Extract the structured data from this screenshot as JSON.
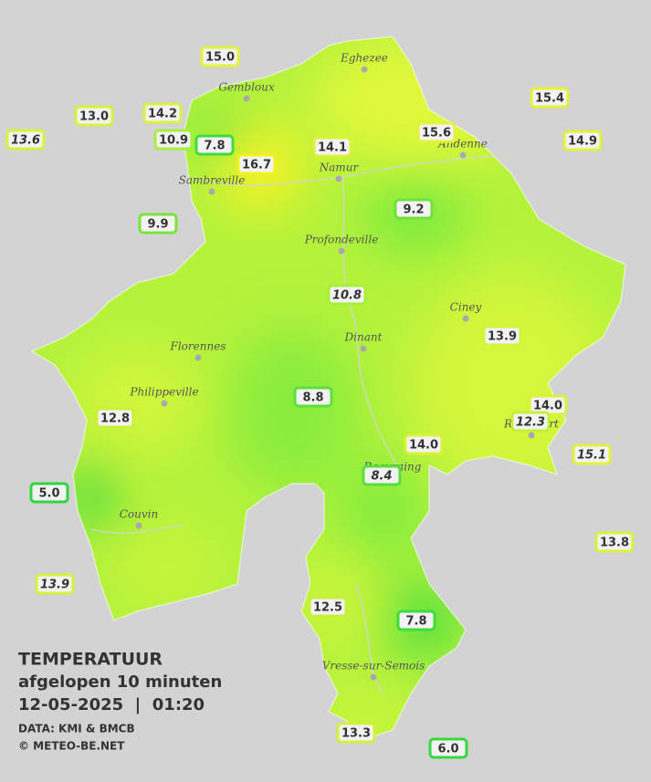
{
  "legend": {
    "title": "TEMPERATUUR",
    "subtitle": "afgelopen 10 minuten",
    "datetime": "12-05-2025  |  01:20",
    "source": "DATA: KMI & BMCB",
    "credit": "© METEO-BE.NET"
  },
  "cities": [
    "Eghezee",
    "Gembloux",
    "Andenne",
    "Namur",
    "Sambreville",
    "Profondeville",
    "Ciney",
    "Florennes",
    "Dinant",
    "Philippeville",
    "Rochefort",
    "Beauraing",
    "Couvin",
    "Vresse-sur-Semois"
  ],
  "stations": [
    {
      "value": "15.0",
      "color": "#e4f23a"
    },
    {
      "value": "13.0",
      "color": "#d8f23a"
    },
    {
      "value": "14.2",
      "color": "#dcf23a"
    },
    {
      "value": "13.6",
      "color": "#d8f23a",
      "italic": true
    },
    {
      "value": "10.9",
      "color": "#a6ef3c"
    },
    {
      "value": "7.8",
      "color": "#3fdc3f"
    },
    {
      "value": "16.7",
      "color": "#f2f222"
    },
    {
      "value": "14.1",
      "color": "#dcf23a"
    },
    {
      "value": "15.6",
      "color": "#e4f23a"
    },
    {
      "value": "15.4",
      "color": "#e4f23a"
    },
    {
      "value": "14.9",
      "color": "#e0f23a"
    },
    {
      "value": "9.9",
      "color": "#78e53c"
    },
    {
      "value": "9.2",
      "color": "#6ee23c"
    },
    {
      "value": "10.8",
      "color": "#a6ef3c",
      "italic": true
    },
    {
      "value": "13.9",
      "color": "#d6f23a"
    },
    {
      "value": "8.8",
      "color": "#5ee03c"
    },
    {
      "value": "14.0",
      "color": "#dcf23a"
    },
    {
      "value": "12.3",
      "color": "#c4f03a",
      "italic": true
    },
    {
      "value": "12.8",
      "color": "#ccf03a"
    },
    {
      "value": "14.0",
      "color": "#dcf23a"
    },
    {
      "value": "15.1",
      "color": "#e2f23a",
      "italic": true
    },
    {
      "value": "8.4",
      "color": "#58de3c",
      "italic": true
    },
    {
      "value": "5.0",
      "color": "#2fd63f"
    },
    {
      "value": "13.8",
      "color": "#d8f23a"
    },
    {
      "value": "13.9",
      "color": "#d6f23a",
      "italic": true
    },
    {
      "value": "12.5",
      "color": "#c8f03a"
    },
    {
      "value": "7.8",
      "color": "#3fdc3f"
    },
    {
      "value": "13.3",
      "color": "#d2f23a"
    },
    {
      "value": "6.0",
      "color": "#36d83f"
    }
  ]
}
